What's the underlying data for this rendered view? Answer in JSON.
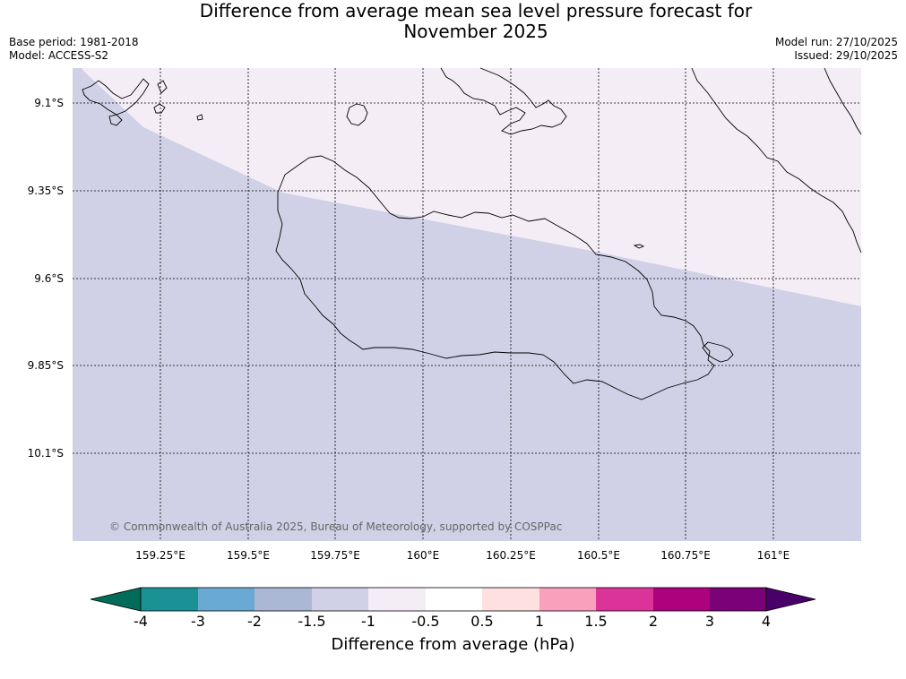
{
  "title": {
    "line1": "Difference from average mean sea level pressure forecast for",
    "line2": "November 2025"
  },
  "meta": {
    "base_period": "Base period: 1981-2018",
    "model": "Model: ACCESS-S2",
    "model_run": "Model run: 27/10/2025",
    "issued": "Issued: 29/10/2025"
  },
  "map": {
    "lat_labels": [
      "9.1°S",
      "9.35°S",
      "9.6°S",
      "9.85°S",
      "10.1°S"
    ],
    "lon_labels": [
      "159.25°E",
      "159.5°E",
      "159.75°E",
      "160°E",
      "160.25°E",
      "160.5°E",
      "160.75°E",
      "161°E"
    ],
    "copyright": "© Commonwealth of Australia 2025, Bureau of Meteorology, supported by COSPPac",
    "fill_colors": {
      "range_-1.5_-1": "#d0d1e6",
      "range_-1_-0.5": "#f4edf6"
    }
  },
  "colorbar": {
    "ticks": [
      "-4",
      "-3",
      "-2",
      "-1.5",
      "-1",
      "-0.5",
      "0.5",
      "1",
      "1.5",
      "2",
      "3",
      "4"
    ],
    "colors": [
      "#1b9196",
      "#69aad4",
      "#aab8d5",
      "#d0d1e6",
      "#f4edf6",
      "#ffffff",
      "#fee0e0",
      "#f9a0bd",
      "#dc3399",
      "#ae017e",
      "#7a0177"
    ],
    "extend_low_color": "#016c59",
    "extend_high_color": "#49006a",
    "label": "Difference from average (hPa)"
  }
}
